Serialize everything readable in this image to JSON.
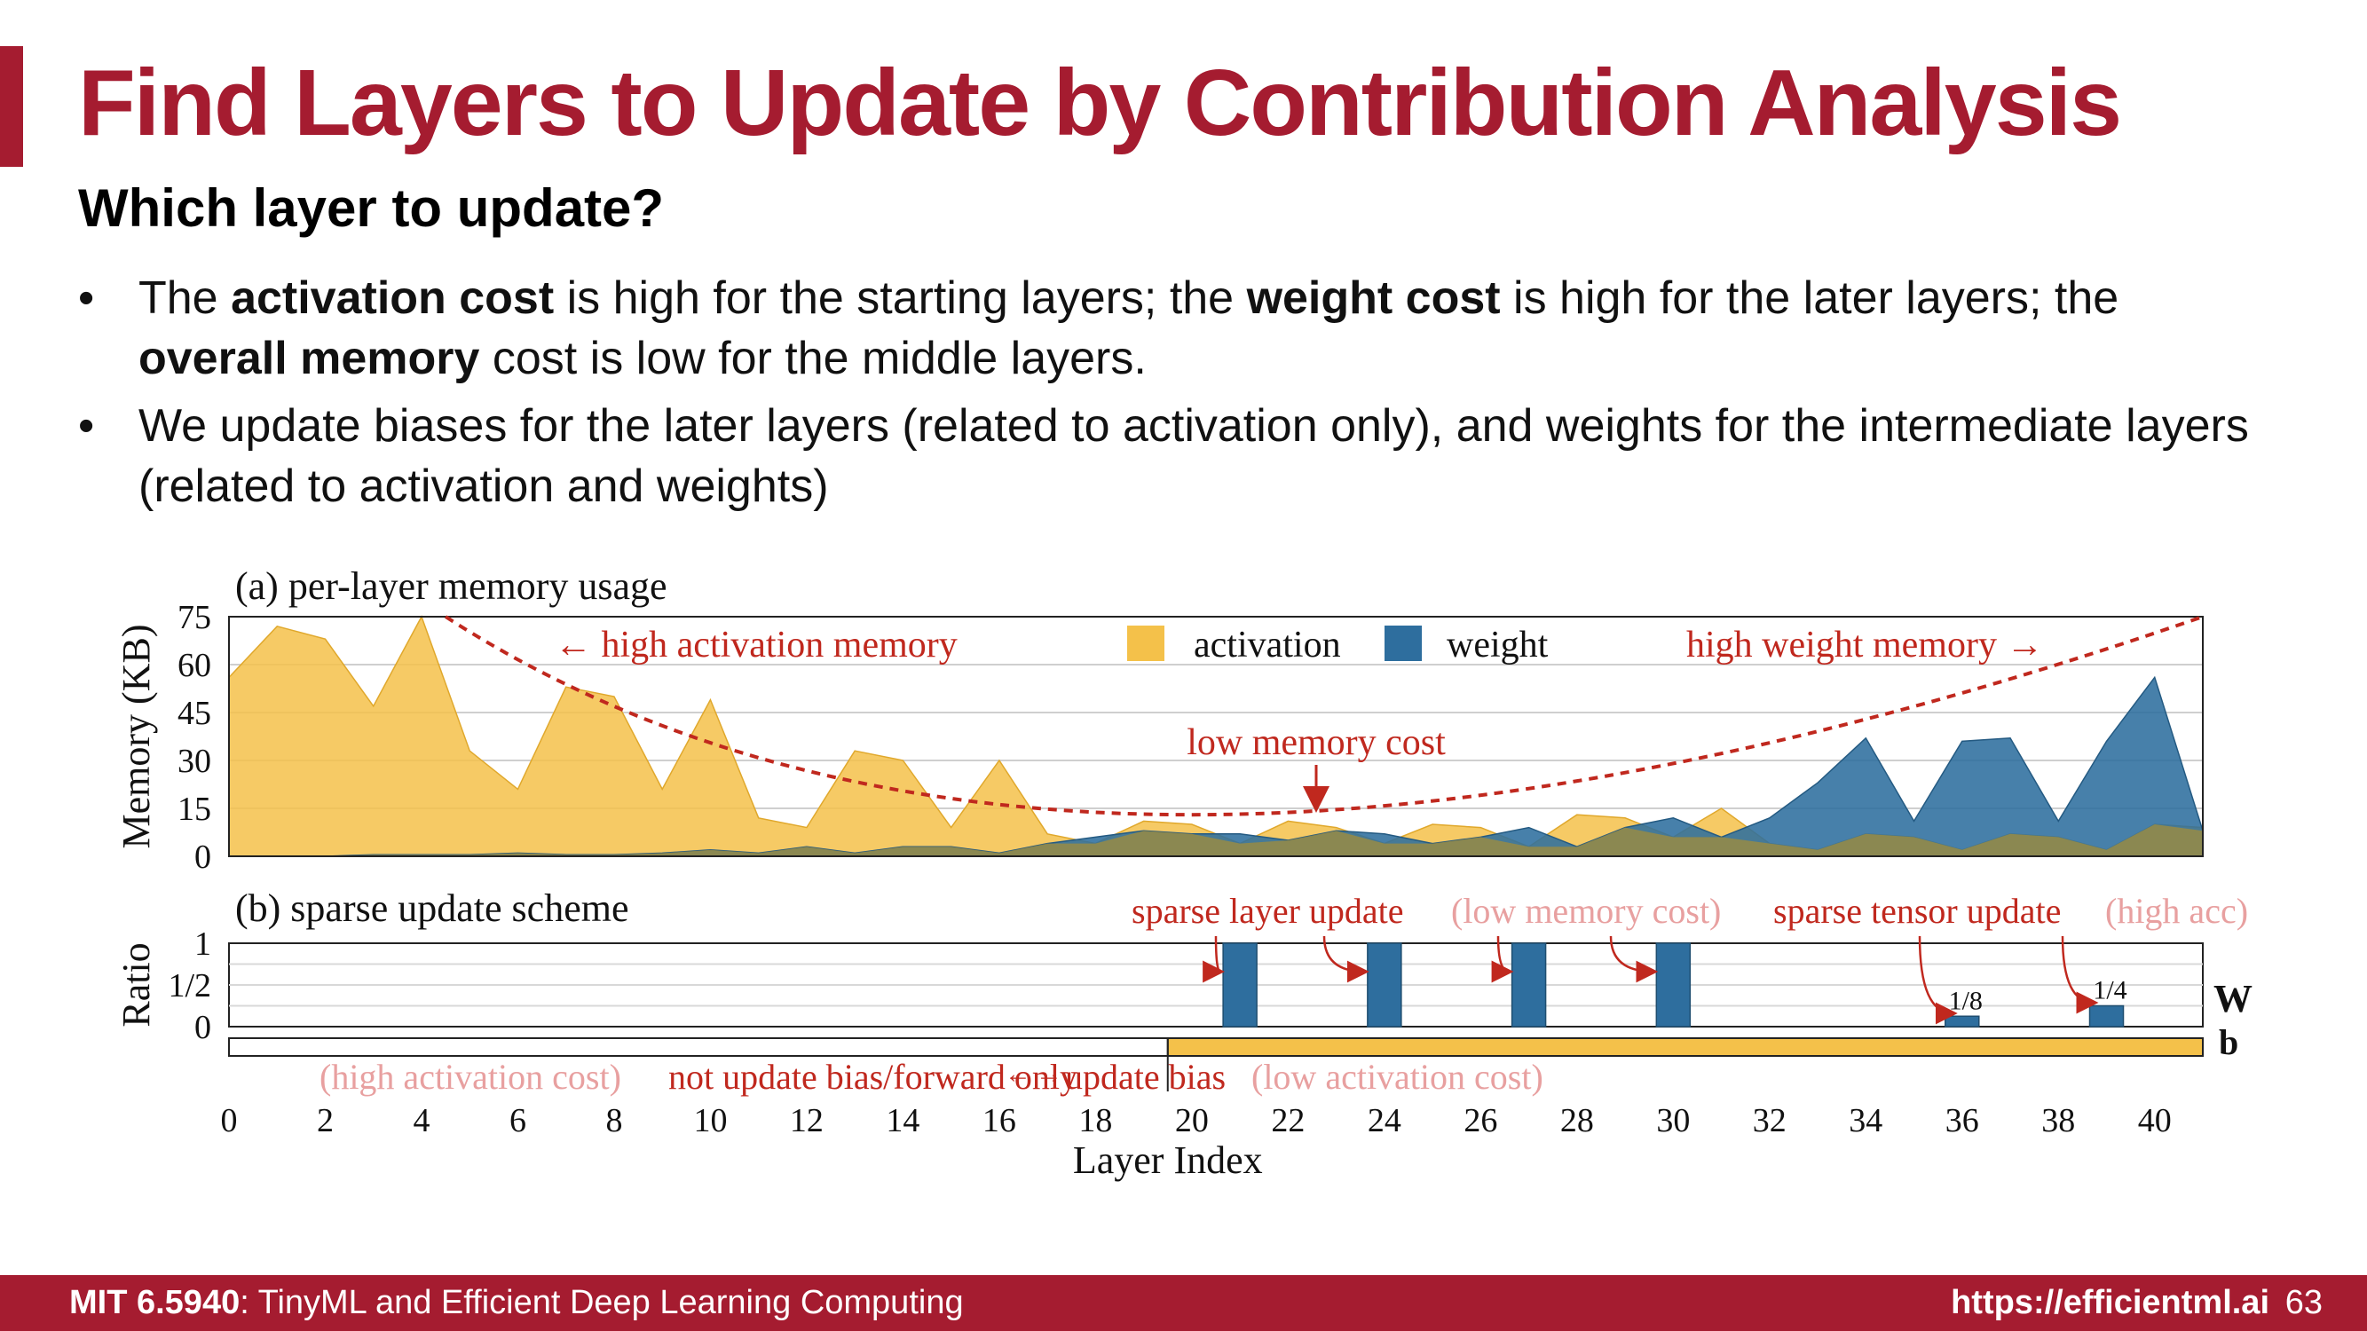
{
  "slide": {
    "title": "Find Layers to Update by Contribution Analysis",
    "subtitle": "Which layer to update?",
    "bullet_marker": "•",
    "bullets": [
      {
        "a": "The ",
        "b": "activation cost",
        "c": " is high for the starting layers; the ",
        "d": "weight cost",
        "e": " is high for the later layers; the ",
        "f": "overall memory",
        "g": " cost is low for the middle layers."
      },
      {
        "text": "We update biases for the later layers (related to activation only), and weights for the intermediate layers (related to activation and weights)"
      }
    ]
  },
  "footer": {
    "course_code": "MIT 6.5940",
    "course_name": ": TinyML and Efficient Deep Learning Computing",
    "url": "https://efficientml.ai",
    "page": "63"
  },
  "chart_data": [
    {
      "type": "area",
      "title": "(a) per-layer memory usage",
      "ylabel": "Memory (KB)",
      "xlabel": "Layer Index",
      "ylim": [
        0,
        75
      ],
      "yticks": [
        0,
        15,
        30,
        45,
        60,
        75
      ],
      "xticks": [
        0,
        2,
        4,
        6,
        8,
        10,
        12,
        14,
        16,
        18,
        20,
        22,
        24,
        26,
        28,
        30,
        32,
        34,
        36,
        38,
        40
      ],
      "grid": true,
      "legend_placement": "top-center",
      "colors": {
        "activation": "#f4c14a",
        "weight": "#2e6e9e",
        "annotation": "#c0281e",
        "faded": "#e8a0a0",
        "overflow": "#f4c14a"
      },
      "x": [
        0,
        1,
        2,
        3,
        4,
        5,
        6,
        7,
        8,
        9,
        10,
        11,
        12,
        13,
        14,
        15,
        16,
        17,
        18,
        19,
        20,
        21,
        22,
        23,
        24,
        25,
        26,
        27,
        28,
        29,
        30,
        31,
        32,
        33,
        34,
        35,
        36,
        37,
        38,
        39,
        40,
        41
      ],
      "series": [
        {
          "name": "activation",
          "values": [
            56,
            72,
            68,
            47,
            76,
            33,
            21,
            53,
            50,
            21,
            49,
            12,
            9,
            33,
            30,
            9,
            30,
            7,
            4,
            11,
            10,
            4,
            11,
            9,
            4,
            10,
            9,
            3,
            13,
            12,
            6,
            15,
            4,
            2,
            7,
            6,
            2,
            7,
            6,
            2,
            10,
            9
          ]
        },
        {
          "name": "weight",
          "values": [
            0,
            0,
            0,
            0.5,
            0.5,
            0.5,
            1,
            0.5,
            0.5,
            1,
            2,
            1,
            3,
            1,
            3,
            3,
            1,
            4,
            6,
            8,
            7,
            7,
            5,
            8,
            7,
            4,
            6,
            9,
            3,
            9,
            12,
            6,
            12,
            23,
            37,
            11,
            36,
            37,
            11,
            36,
            56,
            8
          ]
        }
      ],
      "overflow_values": {
        "4": 76,
        "41": 76
      },
      "annotations": {
        "high_activation": "← high activation memory",
        "high_weight": "high weight memory →",
        "low_cost": "low memory cost"
      },
      "trend_curve": {
        "type": "dashed",
        "passes": [
          [
            4.5,
            75
          ],
          [
            20,
            13
          ],
          [
            41,
            75
          ]
        ]
      }
    },
    {
      "type": "bar",
      "title": "(b) sparse update scheme",
      "ylabel": "Ratio",
      "ylim": [
        0,
        1
      ],
      "yticks": [
        "0",
        "1/2",
        "1"
      ],
      "row_labels": {
        "weight": "W",
        "bias": "b"
      },
      "weight_updates": [
        {
          "layer": 21,
          "ratio": 1
        },
        {
          "layer": 24,
          "ratio": 1
        },
        {
          "layer": 27,
          "ratio": 1
        },
        {
          "layer": 30,
          "ratio": 1
        },
        {
          "layer": 36,
          "ratio": 0.125,
          "label": "1/8"
        },
        {
          "layer": 39,
          "ratio": 0.25,
          "label": "1/4"
        }
      ],
      "bias_update_from_layer": 19.5,
      "annotations": {
        "sparse_layer": "sparse layer update",
        "sparse_layer_note": "(low memory cost)",
        "sparse_tensor": "sparse tensor update",
        "sparse_tensor_note": "(high acc)",
        "high_act_note": "(high activation cost)",
        "not_update": "not update bias/forward only",
        "update_bias": "update bias",
        "low_act_note": "(low activation cost)"
      }
    }
  ]
}
